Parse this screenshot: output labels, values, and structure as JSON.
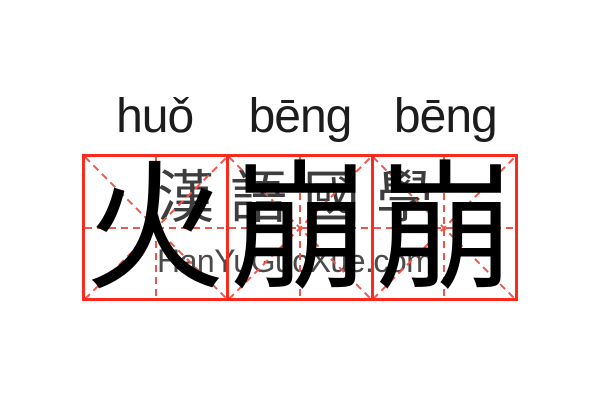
{
  "word": {
    "pinyin_syllables": [
      {
        "text": "huǒ"
      },
      {
        "text": "bēng"
      },
      {
        "text": "bēng"
      }
    ],
    "characters": [
      {
        "glyph": "火"
      },
      {
        "glyph": "崩"
      },
      {
        "glyph": "崩"
      }
    ]
  },
  "watermark": {
    "hanzi": "漢語國學",
    "latin": "HanYuGuoXue.com"
  },
  "colors": {
    "background": "#ffffff",
    "pinyin_ink": "#1c1c1c",
    "ink": "#000000",
    "grid_red": "#fa2b1d",
    "grid_dash_red": "#ef564a",
    "watermark_gray": "#3d3d3d",
    "watermark_latin_gray": "#4a4a4a"
  }
}
